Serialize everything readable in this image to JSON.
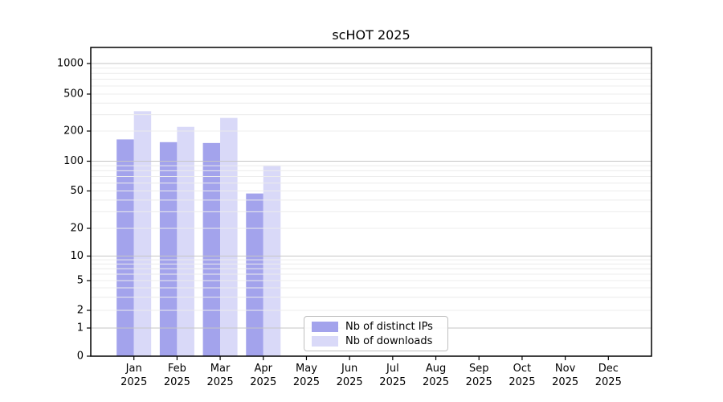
{
  "figure": {
    "background": "#ffffff"
  },
  "chart_data": {
    "type": "bar",
    "title": "scHOT 2025",
    "xlabel": "",
    "ylabel": "",
    "categories": [
      "Jan",
      "Feb",
      "Mar",
      "Apr",
      "May",
      "Jun",
      "Jul",
      "Aug",
      "Sep",
      "Oct",
      "Nov",
      "Dec"
    ],
    "x_year_line": "2025",
    "series": [
      {
        "name": "Nb of distinct IPs",
        "color": "#a3a3ec",
        "values": [
          165,
          155,
          152,
          47,
          null,
          null,
          null,
          null,
          null,
          null,
          null,
          null
        ]
      },
      {
        "name": "Nb of downloads",
        "color": "#d9d9f8",
        "values": [
          327,
          222,
          277,
          90,
          null,
          null,
          null,
          null,
          null,
          null,
          null,
          null
        ]
      }
    ],
    "yticks": [
      0,
      1,
      2,
      5,
      10,
      20,
      50,
      100,
      200,
      500,
      1000
    ],
    "yscale": "symlog",
    "ylim": [
      0,
      1450
    ],
    "grid": {
      "enabled": true,
      "major_values": [
        1,
        10,
        100,
        1000
      ],
      "major_color": "#c6c6c6",
      "minor_color": "#ececec",
      "drawn_above_bars": true
    },
    "legend": {
      "position": "lower-center",
      "entries": [
        "Nb of distinct IPs",
        "Nb of downloads"
      ]
    },
    "axis_color": "#000000",
    "tick_label_color": "#000000"
  }
}
